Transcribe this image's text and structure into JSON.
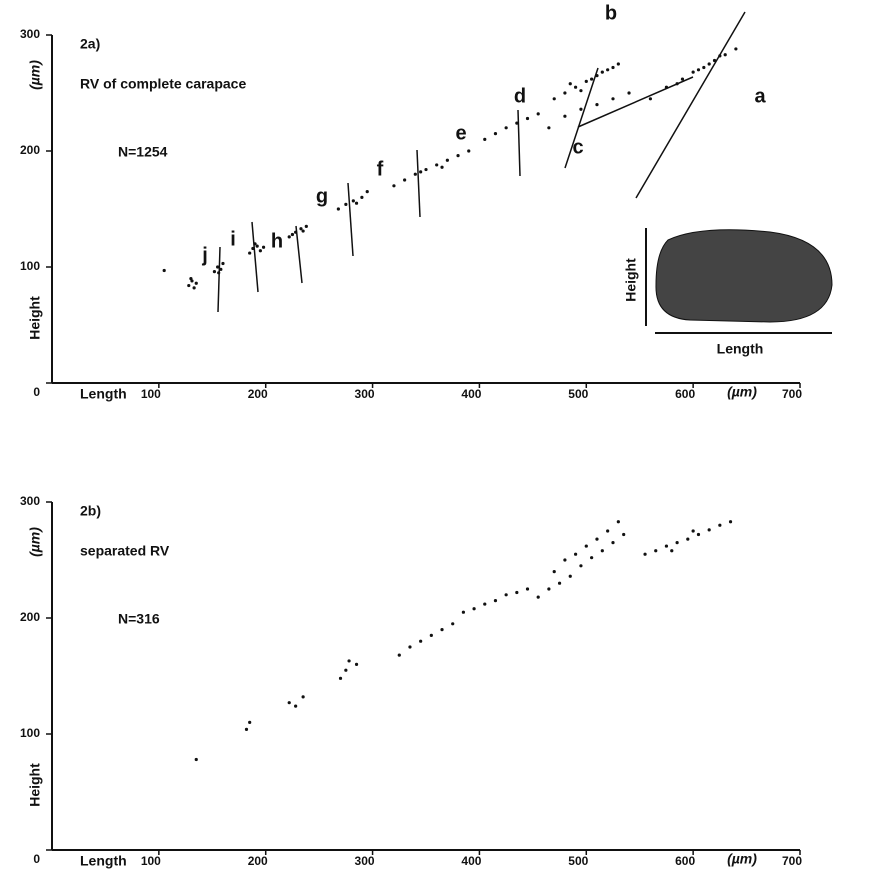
{
  "chart_data": [
    {
      "type": "scatter",
      "title": "2a)",
      "subtitle": "RV of complete carapace",
      "n_label": "N=1254",
      "x_label": "Length",
      "y_label": "Height",
      "x_unit": "(µm)",
      "y_unit": "(µm)",
      "xlim": [
        0,
        700
      ],
      "ylim": [
        0,
        300
      ],
      "xticks": [
        100,
        200,
        300,
        400,
        500,
        600,
        700
      ],
      "yticks": [
        0,
        100,
        200,
        300
      ],
      "color": "#111",
      "annotations": [
        "j",
        "i",
        "h",
        "g",
        "f",
        "e",
        "d",
        "c",
        "b",
        "a"
      ],
      "inset_labels": [
        "Height",
        "Length"
      ],
      "x": [
        105,
        128,
        131,
        133,
        135,
        130,
        152,
        155,
        158,
        160,
        156,
        185,
        188,
        192,
        195,
        190,
        198,
        222,
        228,
        233,
        238,
        225,
        235,
        268,
        275,
        282,
        290,
        295,
        285,
        320,
        330,
        340,
        350,
        360,
        370,
        380,
        390,
        345,
        365,
        405,
        415,
        425,
        435,
        445,
        455,
        465,
        480,
        495,
        510,
        525,
        540,
        470,
        480,
        490,
        500,
        510,
        520,
        530,
        485,
        505,
        515,
        495,
        525,
        560,
        575,
        590,
        600,
        610,
        620,
        630,
        640,
        605,
        615,
        585,
        625
      ],
      "y": [
        97,
        84,
        88,
        82,
        86,
        90,
        96,
        100,
        98,
        103,
        95,
        112,
        116,
        118,
        114,
        120,
        117,
        126,
        130,
        133,
        135,
        128,
        131,
        150,
        154,
        157,
        160,
        165,
        155,
        170,
        175,
        180,
        184,
        188,
        192,
        196,
        200,
        182,
        186,
        210,
        215,
        220,
        224,
        228,
        232,
        220,
        230,
        236,
        240,
        245,
        250,
        245,
        250,
        255,
        260,
        265,
        270,
        275,
        258,
        262,
        268,
        252,
        272,
        245,
        255,
        262,
        268,
        272,
        278,
        283,
        288,
        270,
        275,
        258,
        282
      ]
    },
    {
      "type": "scatter",
      "title": "2b)",
      "subtitle": "separated RV",
      "n_label": "N=316",
      "x_label": "Length",
      "y_label": "Height",
      "x_unit": "(µm)",
      "y_unit": "(µm)",
      "xlim": [
        0,
        700
      ],
      "ylim": [
        0,
        300
      ],
      "xticks": [
        100,
        200,
        300,
        400,
        500,
        600,
        700
      ],
      "yticks": [
        0,
        100,
        200,
        300
      ],
      "color": "#111",
      "x": [
        135,
        182,
        185,
        222,
        228,
        235,
        270,
        275,
        285,
        278,
        325,
        335,
        345,
        355,
        365,
        375,
        385,
        395,
        405,
        415,
        425,
        435,
        445,
        455,
        465,
        475,
        485,
        495,
        505,
        515,
        525,
        535,
        470,
        480,
        490,
        500,
        510,
        520,
        530,
        555,
        565,
        575,
        585,
        595,
        605,
        615,
        625,
        635,
        600,
        580
      ],
      "y": [
        78,
        104,
        110,
        127,
        124,
        132,
        148,
        155,
        160,
        163,
        168,
        175,
        180,
        185,
        190,
        195,
        205,
        208,
        212,
        215,
        220,
        222,
        225,
        218,
        225,
        230,
        236,
        245,
        252,
        258,
        265,
        272,
        240,
        250,
        255,
        262,
        268,
        275,
        283,
        255,
        258,
        262,
        265,
        268,
        272,
        276,
        280,
        283,
        275,
        258
      ]
    }
  ]
}
